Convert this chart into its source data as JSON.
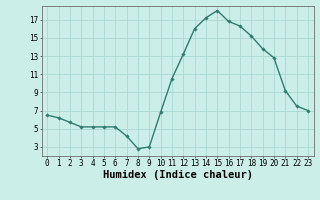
{
  "x": [
    0,
    1,
    2,
    3,
    4,
    5,
    6,
    7,
    8,
    9,
    10,
    11,
    12,
    13,
    14,
    15,
    16,
    17,
    18,
    19,
    20,
    21,
    22,
    23
  ],
  "y": [
    6.5,
    6.2,
    5.7,
    5.2,
    5.2,
    5.2,
    5.2,
    4.2,
    2.8,
    3.0,
    6.8,
    10.5,
    13.2,
    16.0,
    17.2,
    18.0,
    16.8,
    16.3,
    15.2,
    13.8,
    12.8,
    9.2,
    7.5,
    7.0
  ],
  "line_color": "#2e7d6e",
  "marker": "D",
  "marker_size": 1.8,
  "line_width": 1.0,
  "xlabel": "Humidex (Indice chaleur)",
  "xlim": [
    -0.5,
    23.5
  ],
  "ylim": [
    2,
    18.5
  ],
  "yticks": [
    3,
    5,
    7,
    9,
    11,
    13,
    15,
    17
  ],
  "xticks": [
    0,
    1,
    2,
    3,
    4,
    5,
    6,
    7,
    8,
    9,
    10,
    11,
    12,
    13,
    14,
    15,
    16,
    17,
    18,
    19,
    20,
    21,
    22,
    23
  ],
  "bg_color": "#cceee8",
  "grid_color": "#aad8d2",
  "tick_font_size": 5.5,
  "xlabel_font_size": 7.5
}
